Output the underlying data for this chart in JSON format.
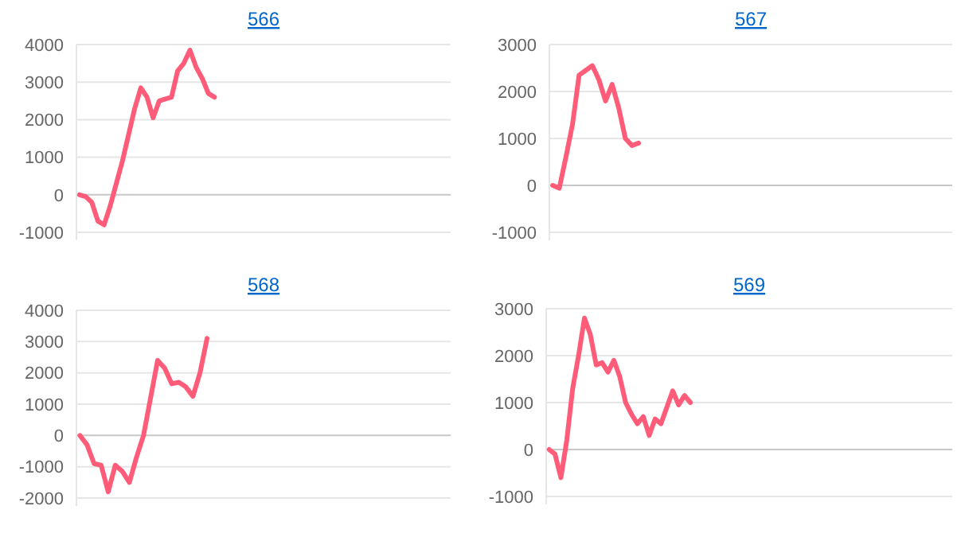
{
  "chart_data": [
    {
      "type": "line",
      "title": "566",
      "categories": [
        null,
        null,
        null,
        null,
        null,
        null,
        null,
        null,
        null,
        null,
        null,
        null,
        null,
        null,
        null,
        null,
        null,
        null,
        null,
        null,
        null,
        null,
        null,
        null,
        null,
        null,
        null,
        null,
        null,
        null,
        null,
        null,
        null,
        null,
        null,
        null,
        null,
        null,
        null,
        null,
        null,
        null,
        null,
        null,
        null,
        null,
        null,
        null,
        null,
        null,
        null,
        null,
        null,
        null,
        null,
        null,
        null,
        null,
        null,
        null,
        null
      ],
      "series": [
        {
          "color": "#ff5c7a",
          "values": [
            0,
            -50,
            -200,
            -700,
            -800,
            -300,
            300,
            900,
            1600,
            2300,
            2850,
            2600,
            2050,
            2500,
            2550,
            2600,
            3300,
            3500,
            3850,
            3400,
            3100,
            2700,
            2600,
            null,
            null,
            null,
            null,
            null,
            null,
            null,
            null,
            null,
            null,
            null,
            null,
            null,
            null,
            null,
            null,
            null,
            null,
            null,
            null,
            null,
            null,
            null,
            null,
            null,
            null,
            null,
            null,
            null,
            null,
            null,
            null,
            null,
            null,
            null,
            null,
            null,
            null
          ]
        }
      ],
      "ylim": [
        -1000,
        4000
      ],
      "yticks": [
        -1000,
        0,
        1000,
        2000,
        3000,
        4000
      ],
      "grid": "y"
    },
    {
      "type": "line",
      "title": "567",
      "categories": [
        null,
        null,
        null,
        null,
        null,
        null,
        null,
        null,
        null,
        null,
        null,
        null,
        null,
        null,
        null,
        null,
        null,
        null,
        null,
        null,
        null,
        null,
        null,
        null,
        null,
        null,
        null,
        null,
        null,
        null,
        null,
        null,
        null,
        null,
        null,
        null,
        null,
        null,
        null,
        null,
        null,
        null,
        null,
        null,
        null,
        null,
        null,
        null,
        null,
        null,
        null,
        null,
        null,
        null,
        null,
        null,
        null,
        null,
        null,
        null,
        null
      ],
      "series": [
        {
          "color": "#ff5c7a",
          "values": [
            0,
            -60,
            600,
            1300,
            2350,
            2450,
            2550,
            2250,
            1800,
            2150,
            1650,
            1000,
            850,
            900,
            null,
            null,
            null,
            null,
            null,
            null,
            null,
            null,
            null,
            null,
            null,
            null,
            null,
            null,
            null,
            null,
            null,
            null,
            null,
            null,
            null,
            null,
            null,
            null,
            null,
            null,
            null,
            null,
            null,
            null,
            null,
            null,
            null,
            null,
            null,
            null,
            null,
            null,
            null,
            null,
            null,
            null,
            null,
            null,
            null,
            null,
            null
          ]
        }
      ],
      "ylim": [
        -1000,
        3000
      ],
      "yticks": [
        -1000,
        0,
        1000,
        2000,
        3000
      ],
      "grid": "y"
    },
    {
      "type": "line",
      "title": "568",
      "categories": [
        null,
        null,
        null,
        null,
        null,
        null,
        null,
        null,
        null,
        null,
        null,
        null,
        null,
        null,
        null,
        null,
        null,
        null,
        null,
        null,
        null,
        null,
        null,
        null,
        null,
        null,
        null,
        null,
        null,
        null,
        null,
        null,
        null,
        null,
        null,
        null,
        null,
        null,
        null,
        null,
        null,
        null,
        null,
        null,
        null,
        null,
        null,
        null,
        null,
        null,
        null,
        null,
        null
      ],
      "series": [
        {
          "color": "#ff5c7a",
          "values": [
            0,
            -300,
            -900,
            -950,
            -1800,
            -950,
            -1150,
            -1500,
            -700,
            0,
            1200,
            2400,
            2150,
            1650,
            1700,
            1550,
            1250,
            2000,
            3100,
            null,
            null,
            null,
            null,
            null,
            null,
            null,
            null,
            null,
            null,
            null,
            null,
            null,
            null,
            null,
            null,
            null,
            null,
            null,
            null,
            null,
            null,
            null,
            null,
            null,
            null,
            null,
            null,
            null,
            null,
            null,
            null,
            null,
            null
          ]
        }
      ],
      "ylim": [
        -2000,
        4000
      ],
      "yticks": [
        -2000,
        -1000,
        0,
        1000,
        2000,
        3000,
        4000
      ],
      "grid": "y"
    },
    {
      "type": "line",
      "title": "569",
      "categories": [
        null,
        null,
        null,
        null,
        null,
        null,
        null,
        null,
        null,
        null,
        null,
        null,
        null,
        null,
        null,
        null,
        null,
        null,
        null,
        null,
        null,
        null,
        null,
        null,
        null,
        null,
        null,
        null,
        null,
        null,
        null,
        null,
        null,
        null,
        null,
        null,
        null,
        null,
        null,
        null,
        null,
        null,
        null,
        null,
        null,
        null,
        null,
        null,
        null,
        null,
        null,
        null,
        null,
        null,
        null,
        null,
        null,
        null,
        null,
        null,
        null,
        null,
        null,
        null,
        null,
        null,
        null,
        null,
        null
      ],
      "series": [
        {
          "color": "#ff5c7a",
          "values": [
            0,
            -100,
            -600,
            200,
            1300,
            2000,
            2800,
            2450,
            1800,
            1850,
            1650,
            1900,
            1550,
            1000,
            750,
            550,
            700,
            300,
            650,
            550,
            900,
            1250,
            950,
            1150,
            1000,
            null,
            null,
            null,
            null,
            null,
            null,
            null,
            null,
            null,
            null,
            null,
            null,
            null,
            null,
            null,
            null,
            null,
            null,
            null,
            null,
            null,
            null,
            null,
            null,
            null,
            null,
            null,
            null,
            null,
            null,
            null,
            null,
            null,
            null,
            null,
            null,
            null,
            null,
            null,
            null,
            null,
            null,
            null,
            null
          ]
        }
      ],
      "ylim": [
        -1000,
        3000
      ],
      "yticks": [
        -1000,
        0,
        1000,
        2000,
        3000
      ],
      "grid": "y"
    }
  ]
}
